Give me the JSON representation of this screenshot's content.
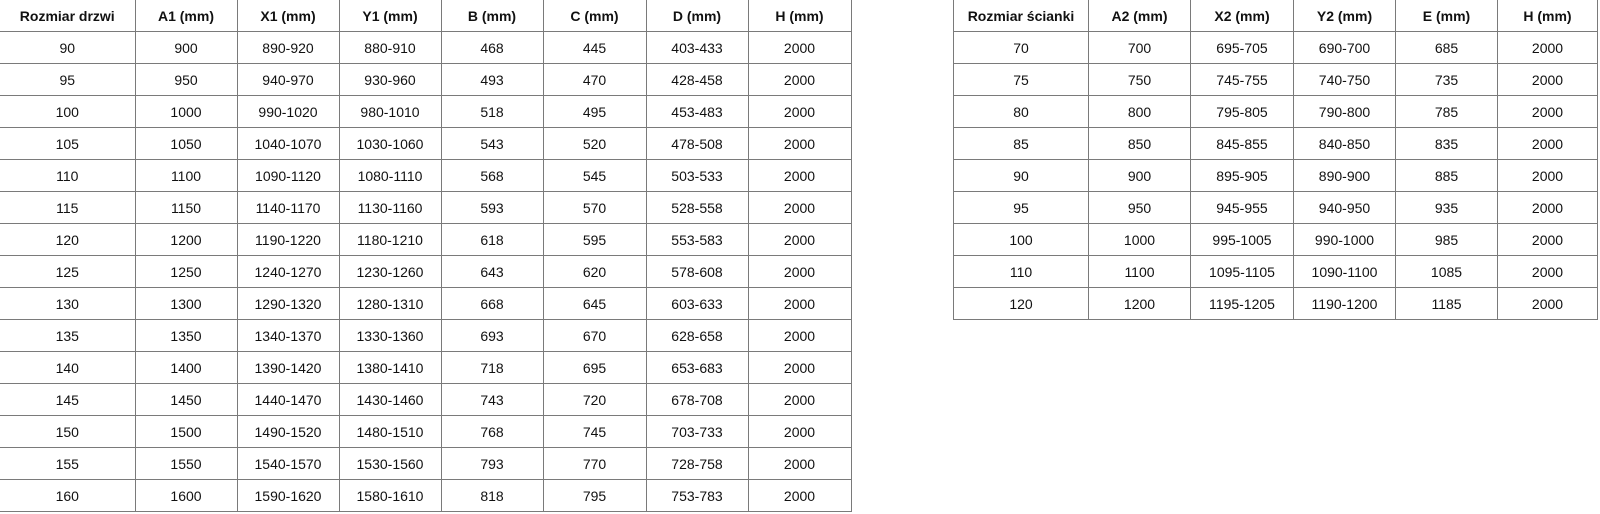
{
  "door_table": {
    "headers": [
      "Rozmiar drzwi",
      "A1 (mm)",
      "X1 (mm)",
      "Y1 (mm)",
      "B (mm)",
      "C (mm)",
      "D (mm)",
      "H (mm)"
    ],
    "rows": [
      [
        "90",
        "900",
        "890-920",
        "880-910",
        "468",
        "445",
        "403-433",
        "2000"
      ],
      [
        "95",
        "950",
        "940-970",
        "930-960",
        "493",
        "470",
        "428-458",
        "2000"
      ],
      [
        "100",
        "1000",
        "990-1020",
        "980-1010",
        "518",
        "495",
        "453-483",
        "2000"
      ],
      [
        "105",
        "1050",
        "1040-1070",
        "1030-1060",
        "543",
        "520",
        "478-508",
        "2000"
      ],
      [
        "110",
        "1100",
        "1090-1120",
        "1080-1110",
        "568",
        "545",
        "503-533",
        "2000"
      ],
      [
        "115",
        "1150",
        "1140-1170",
        "1130-1160",
        "593",
        "570",
        "528-558",
        "2000"
      ],
      [
        "120",
        "1200",
        "1190-1220",
        "1180-1210",
        "618",
        "595",
        "553-583",
        "2000"
      ],
      [
        "125",
        "1250",
        "1240-1270",
        "1230-1260",
        "643",
        "620",
        "578-608",
        "2000"
      ],
      [
        "130",
        "1300",
        "1290-1320",
        "1280-1310",
        "668",
        "645",
        "603-633",
        "2000"
      ],
      [
        "135",
        "1350",
        "1340-1370",
        "1330-1360",
        "693",
        "670",
        "628-658",
        "2000"
      ],
      [
        "140",
        "1400",
        "1390-1420",
        "1380-1410",
        "718",
        "695",
        "653-683",
        "2000"
      ],
      [
        "145",
        "1450",
        "1440-1470",
        "1430-1460",
        "743",
        "720",
        "678-708",
        "2000"
      ],
      [
        "150",
        "1500",
        "1490-1520",
        "1480-1510",
        "768",
        "745",
        "703-733",
        "2000"
      ],
      [
        "155",
        "1550",
        "1540-1570",
        "1530-1560",
        "793",
        "770",
        "728-758",
        "2000"
      ],
      [
        "160",
        "1600",
        "1590-1620",
        "1580-1610",
        "818",
        "795",
        "753-783",
        "2000"
      ]
    ]
  },
  "wall_table": {
    "headers": [
      "Rozmiar ścianki",
      "A2 (mm)",
      "X2 (mm)",
      "Y2 (mm)",
      "E (mm)",
      "H (mm)"
    ],
    "rows": [
      [
        "70",
        "700",
        "695-705",
        "690-700",
        "685",
        "2000"
      ],
      [
        "75",
        "750",
        "745-755",
        "740-750",
        "735",
        "2000"
      ],
      [
        "80",
        "800",
        "795-805",
        "790-800",
        "785",
        "2000"
      ],
      [
        "85",
        "850",
        "845-855",
        "840-850",
        "835",
        "2000"
      ],
      [
        "90",
        "900",
        "895-905",
        "890-900",
        "885",
        "2000"
      ],
      [
        "95",
        "950",
        "945-955",
        "940-950",
        "935",
        "2000"
      ],
      [
        "100",
        "1000",
        "995-1005",
        "990-1000",
        "985",
        "2000"
      ],
      [
        "110",
        "1100",
        "1095-1105",
        "1090-1100",
        "1085",
        "2000"
      ],
      [
        "120",
        "1200",
        "1195-1205",
        "1190-1200",
        "1185",
        "2000"
      ]
    ]
  }
}
